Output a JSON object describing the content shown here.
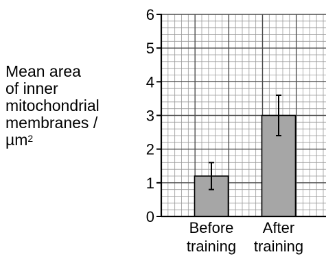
{
  "chart_data": {
    "type": "bar",
    "ylabel_lines": [
      "Mean area",
      "of inner",
      "mitochondrial",
      "membranes /"
    ],
    "ylabel_unit": "µm",
    "ylabel_unit_sup": "2",
    "categories": [
      [
        "Before",
        "training"
      ],
      [
        "After",
        "training"
      ]
    ],
    "values": [
      1.2,
      3.0
    ],
    "error_low": [
      0.8,
      2.4
    ],
    "error_high": [
      1.6,
      3.6
    ],
    "ylim": [
      0,
      6
    ],
    "yticks": [
      "0",
      "1",
      "2",
      "3",
      "4",
      "5",
      "6"
    ],
    "grid": true,
    "colors": {
      "bar": "#a6a6a6",
      "grid_minor": "#999999",
      "grid_major": "#4d4d4d",
      "axis": "#000000"
    }
  }
}
